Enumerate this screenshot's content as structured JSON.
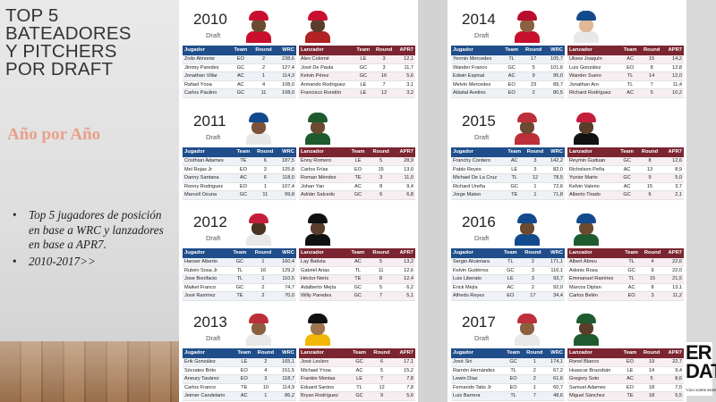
{
  "left": {
    "title_lines": [
      "TOP 5",
      "BATEADORES",
      "Y PITCHERS",
      "POR DRAFT"
    ],
    "subtitle": "Año por Año",
    "bullets": [
      "Top 5 jugadores de posición en base a WRC y lanzadores en base a APR7.",
      "2010-2017>>"
    ]
  },
  "draft_label": "Draft",
  "headers": {
    "bat": [
      "Jugador",
      "Team",
      "Round",
      "WRC"
    ],
    "pit": [
      "Lanzador",
      "Team",
      "Round",
      "APR7"
    ]
  },
  "years": [
    {
      "year": "2010",
      "bat": [
        [
          "Zoilo Almonte",
          "EO",
          "2",
          "238,6"
        ],
        [
          "Jimmy Paredes",
          "GC",
          "2",
          "127,4"
        ],
        [
          "Jonathan Villar",
          "AC",
          "1",
          "114,3"
        ],
        [
          "Rafael Ynoa",
          "AC",
          "4",
          "108,0"
        ],
        [
          "Carlos Paulino",
          "GC",
          "11",
          "108,0"
        ]
      ],
      "pit": [
        [
          "Alex Colomé",
          "LE",
          "3",
          "12,1"
        ],
        [
          "José De Paula",
          "GC",
          "3",
          "11,7"
        ],
        [
          "Kelvin Pérez",
          "GC",
          "16",
          "5,6"
        ],
        [
          "Armando Rodriguez",
          "LE",
          "7",
          "3,1"
        ],
        [
          "Francisco Rondón",
          "LE",
          "12",
          "3,2"
        ]
      ]
    },
    {
      "year": "2011",
      "bat": [
        [
          "Cristhian Adames",
          "TE",
          "6",
          "187,5"
        ],
        [
          "Mel Rojas Jr",
          "EO",
          "3",
          "125,8"
        ],
        [
          "Danny Santana",
          "AC",
          "6",
          "118,0"
        ],
        [
          "Ronny Rodriguez",
          "EO",
          "1",
          "107,4"
        ],
        [
          "Marcell Ozuna",
          "GC",
          "11",
          "99,8"
        ]
      ],
      "pit": [
        [
          "Enny Romero",
          "LE",
          "5",
          "28,9"
        ],
        [
          "Carlos Frías",
          "EO",
          "15",
          "13,0"
        ],
        [
          "Roman Méndez",
          "TE",
          "3",
          "11,0"
        ],
        [
          "Johan Yan",
          "AC",
          "8",
          "9,4"
        ],
        [
          "Adrián Salcedo",
          "GC",
          "6",
          "6,8"
        ]
      ]
    },
    {
      "year": "2012",
      "bat": [
        [
          "Hanser Alberto",
          "GC",
          "1",
          "160,4"
        ],
        [
          "Rubén Sosa Jr",
          "TL",
          "16",
          "129,3"
        ],
        [
          "Jose Bonifacio",
          "TL",
          "1",
          "110,5"
        ],
        [
          "Maikel Franco",
          "GC",
          "2",
          "74,7"
        ],
        [
          "José Ramírez",
          "TE",
          "2",
          "70,0"
        ]
      ],
      "pit": [
        [
          "Lay Batista",
          "AC",
          "5",
          "13,2"
        ],
        [
          "Gabriel Arias",
          "TL",
          "11",
          "12,6"
        ],
        [
          "Héctor Neris",
          "TE",
          "8",
          "12,4"
        ],
        [
          "Adalberto Mejía",
          "GC",
          "5",
          "6,2"
        ],
        [
          "Willy Paredes",
          "GC",
          "7",
          "5,1"
        ]
      ]
    },
    {
      "year": "2013",
      "bat": [
        [
          "Erik González",
          "LE",
          "2",
          "165,1"
        ],
        [
          "Sócrates Brito",
          "EO",
          "4",
          "151,5"
        ],
        [
          "Aneury Tavárez",
          "EO",
          "3",
          "118,7"
        ],
        [
          "Carlos Franco",
          "TE",
          "10",
          "114,9"
        ],
        [
          "Jeimer Candelario",
          "AC",
          "1",
          "86,2"
        ]
      ],
      "pit": [
        [
          "José Leclerc",
          "GC",
          "6",
          "17,1"
        ],
        [
          "Michael Ynoa",
          "AC",
          "5",
          "15,2"
        ],
        [
          "Frankie Montas",
          "LE",
          "7",
          "7,8"
        ],
        [
          "Eduard Santos",
          "TL",
          "12",
          "7,8"
        ],
        [
          "Bryan Rodríguez",
          "GC",
          "9",
          "5,6"
        ]
      ]
    },
    {
      "year": "2014",
      "bat": [
        [
          "Yermin Mercedes",
          "TL",
          "17",
          "105,7"
        ],
        [
          "Wander Franco",
          "GC",
          "5",
          "101,6"
        ],
        [
          "Edwin Espinal",
          "AC",
          "9",
          "95,0"
        ],
        [
          "Melvin Mercedes",
          "EO",
          "23",
          "89,7"
        ],
        [
          "Abiatal Avelino",
          "EO",
          "2",
          "80,5"
        ]
      ],
      "pit": [
        [
          "Ulises Joaquín",
          "AC",
          "15",
          "14,2"
        ],
        [
          "Luis González",
          "EO",
          "8",
          "12,8"
        ],
        [
          "Wander Suero",
          "TL",
          "14",
          "12,0"
        ],
        [
          "Jonathan Aro",
          "TL",
          "7",
          "11,4"
        ],
        [
          "Richard Rodríguez",
          "AC",
          "5",
          "10,2"
        ]
      ]
    },
    {
      "year": "2015",
      "bat": [
        [
          "Franchy Cordero",
          "AC",
          "3",
          "142,2"
        ],
        [
          "Pablo Reyes",
          "LE",
          "3",
          "82,0"
        ],
        [
          "Michael De La Cruz",
          "TL",
          "12",
          "78,5"
        ],
        [
          "Richard Ureña",
          "GC",
          "1",
          "72,6"
        ],
        [
          "Jorge Mateo",
          "TE",
          "1",
          "71,8"
        ]
      ],
      "pit": [
        [
          "Reymin Guduan",
          "GC",
          "8",
          "12,6"
        ],
        [
          "Richelson Peña",
          "AC",
          "13",
          "8,9"
        ],
        [
          "Yunior Marte",
          "GC",
          "9",
          "5,0"
        ],
        [
          "Kelvin Valerio",
          "AC",
          "15",
          "3,7"
        ],
        [
          "Alberto Tirado",
          "GC",
          "6",
          "2,1"
        ]
      ]
    },
    {
      "year": "2016",
      "bat": [
        [
          "Sergio Alcántara",
          "TL",
          "2",
          "171,1"
        ],
        [
          "Kelvin Gutiérrez",
          "GC",
          "3",
          "116,1"
        ],
        [
          "Luis Liberato",
          "LE",
          "3",
          "93,7"
        ],
        [
          "Erick Mejía",
          "AC",
          "2",
          "92,0"
        ],
        [
          "Alfredo Reyes",
          "EO",
          "17",
          "34,4"
        ]
      ],
      "pit": [
        [
          "Albert Abreu",
          "TL",
          "4",
          "22,6"
        ],
        [
          "Adonis Rosa",
          "GC",
          "9",
          "22,0"
        ],
        [
          "Emmanuel Ramírez",
          "TL",
          "15",
          "21,5"
        ],
        [
          "Marcos Diplan",
          "AC",
          "8",
          "13,1"
        ],
        [
          "Carlos Belén",
          "EO",
          "3",
          "11,2"
        ]
      ]
    },
    {
      "year": "2017",
      "bat": [
        [
          "José Siri",
          "GC",
          "1",
          "174,1"
        ],
        [
          "Ramón Hernández",
          "TL",
          "2",
          "67,2"
        ],
        [
          "Lewin Díaz",
          "EO",
          "2",
          "61,6"
        ],
        [
          "Fernando Tatis Jr",
          "EO",
          "1",
          "60,7"
        ],
        [
          "Luis Barrera",
          "TL",
          "7",
          "48,6"
        ]
      ],
      "pit": [
        [
          "Ronel Blanco",
          "EO",
          "19",
          "22,7"
        ],
        [
          "Huascar Brazobán",
          "LE",
          "14",
          "9,4"
        ],
        [
          "Gregory Soto",
          "AC",
          "5",
          "8,6"
        ],
        [
          "Samuel Adames",
          "EO",
          "18",
          "7,0"
        ],
        [
          "Miguel Sánchez",
          "TE",
          "18",
          "5,5"
        ]
      ]
    }
  ],
  "photo_colors": [
    [
      "#c8102e",
      "#6b4a32",
      "#c8102e",
      "#c8102e",
      "#5a3d2b",
      "#b22222"
    ],
    [
      "#134a8e",
      "#7a5338",
      "#e8e8e8",
      "#1e5b2e",
      "#6b4a32",
      "#1e5b2e"
    ],
    [
      "#c41e3a",
      "#4b3222",
      "#e8e8e8",
      "#111111",
      "#5a3d2b",
      "#111111"
    ],
    [
      "#bd3039",
      "#8a6040",
      "#e8e8e8",
      "#111111",
      "#a0744f",
      "#f2b705"
    ],
    [
      "#ba0c2f",
      "#8a6040",
      "#c8102e",
      "#134a8e",
      "#e0b896",
      "#e8e8e8"
    ],
    [
      "#bd3039",
      "#6b4a32",
      "#bd3039",
      "#c41e3a",
      "#5a3d2b",
      "#111111"
    ],
    [
      "#134a8e",
      "#6b4a32",
      "#134a8e",
      "#134a8e",
      "#6b4a32",
      "#1e5b2e"
    ],
    [
      "#bd3039",
      "#8a6040",
      "#e8e8e8",
      "#1e5b2e",
      "#5a3d2b",
      "#1e5b2e"
    ]
  ],
  "logo": {
    "text": "ER\nDATA",
    "sub": "TODO SOBRE BEISBOL"
  }
}
